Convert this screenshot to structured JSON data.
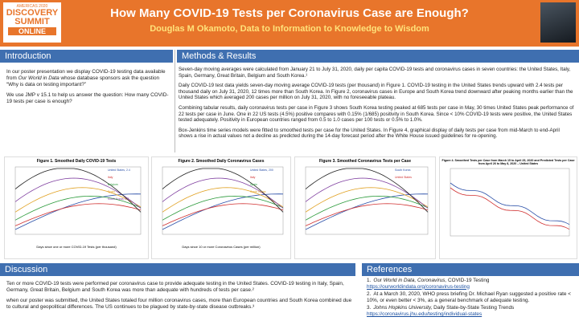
{
  "header": {
    "logo": {
      "line1": "AMERICAS 2020",
      "line2": "DISCOVERY",
      "line3": "SUMMIT",
      "line4": "ONLINE"
    },
    "title": "How Many COVID-19 Tests per Coronavirus Case are Enough?",
    "subtitle": "Douglas M Okamoto, Data to Information to Knowledge to Wisdom"
  },
  "introduction": {
    "heading": "Introduction",
    "p1a": "In our poster presentation we display COVID-19  testing data available from ",
    "p1b": "Our World in Data",
    "p1c": " whose database sponsors ask the question “Why is data on testing important?”",
    "p2": "We use JMP v 15.1 to help us answer the question: How many COVID-19 tests per case is enough?"
  },
  "methods": {
    "heading": "Methods & Results",
    "paragraphs": [
      "Seven-day moving averages were calculated from January 21 to July 31, 2020, daily per capita COVID-19  tests and coronavirus cases in seven countries: the United States, Italy, Spain, Germany, Great Britain, Belgium and South Korea.¹",
      "Daily COVID-19  test data yields seven-day moving average COVID-19 tests (per thousand) in Figure 1. COVID-19 testing in the United States trends upward with 2.4 tests per thousand daily on July 31, 2020, 12 times more than South Korea. In Figure 2, coronavirus cases in Europe and South Korea trend downward after peaking months earlier than the United States which averaged 200 cases per million on July 31, 2020, with no foreseeable plateau.",
      "Combining tabular results, daily coronavirus tests per case in Figure 3 shows South Korea testing peaked at 685 tests per case in May, 30 times United States peak performance of 22 tests per case in June. One in 22 US tests (4.5%) positive compares with  0.15% (1/685) positivity in South Korea. Since < 10% COVID-19 tests were positive, the United States tested adequately. Positivity in European countries ranged from 0.5 to 1.0 cases per 100 tests or 0.5% to 1.0%.",
      "Box-Jenkins time series models were fitted to smoothed tests per case for the United States. In Figure 4, graphical display of daily tests per case from mid-March to end-April shows a rise in actual values not a decline as predicted during the 14-day forecast period after the White House issued guidelines for re-opening."
    ]
  },
  "figures": [
    {
      "title": "Figure 1. Smoothed Daily COVID-19 Tests",
      "xlabel": "Days since one or more COVID-19 Tests (per thousand)",
      "labels": [
        "United States, 2.4",
        "Italy",
        "Belgium",
        "Spain",
        "South Korea, 0.2"
      ]
    },
    {
      "title": "Figure 2. Smoothed Daily Coronavirus Cases",
      "xlabel": "Days since 10 or more Coronavirus Cases (per million)",
      "labels": [
        "United States, 200",
        "Italy",
        "Spain",
        "South Korea"
      ]
    },
    {
      "title": "Figure 3. Smoothed Coronavirus Tests per Case",
      "xlabel": "",
      "labels": [
        "South Korea",
        "United States"
      ]
    },
    {
      "title": "Figure 4. Smoothed Tests per Case from March 15 to April 25, 2020 and Predicted Tests per Case from April 26 to May 8, 2020 – United States",
      "xlabel": "",
      "labels": []
    }
  ],
  "discussion": {
    "heading": "Discussion",
    "paragraphs": [
      "Ten or more COVID-19 tests were performed per coronavirus case to provide adequate testing in the United States. COVID-19 testing in Italy, Spain, Germany, Great Britain, Belgium and South Korea was more than adequate with hundreds of tests per case.²",
      "when our poster was submitted, the United States totaled four million coronavirus cases, more than European countries and South Korea combined due to cultural and geopolitical differences. The US continues to be plagued by state-by-state disease outbreaks.³"
    ]
  },
  "references": {
    "heading": "References",
    "items": [
      {
        "num": "1.",
        "source": "Our World in Data, Coronavirus,",
        "text": " COVID-19 Testing",
        "url": "https://ourworldindata.org/coronavirus-testing"
      },
      {
        "num": "2.",
        "source": "",
        "text": "At a March 30, 2020, WHO press briefing Dr. Michael Ryan suggested a positive rate < 10%, or even better < 3%, as a general benchmark of adequate testing.",
        "url": ""
      },
      {
        "num": "3.",
        "source": "Johns Hopkins University,",
        "text": " Daily State-by-State Testing Trends",
        "url": "https://coronavirus.jhu.edu/testing/individual-states"
      }
    ]
  }
}
